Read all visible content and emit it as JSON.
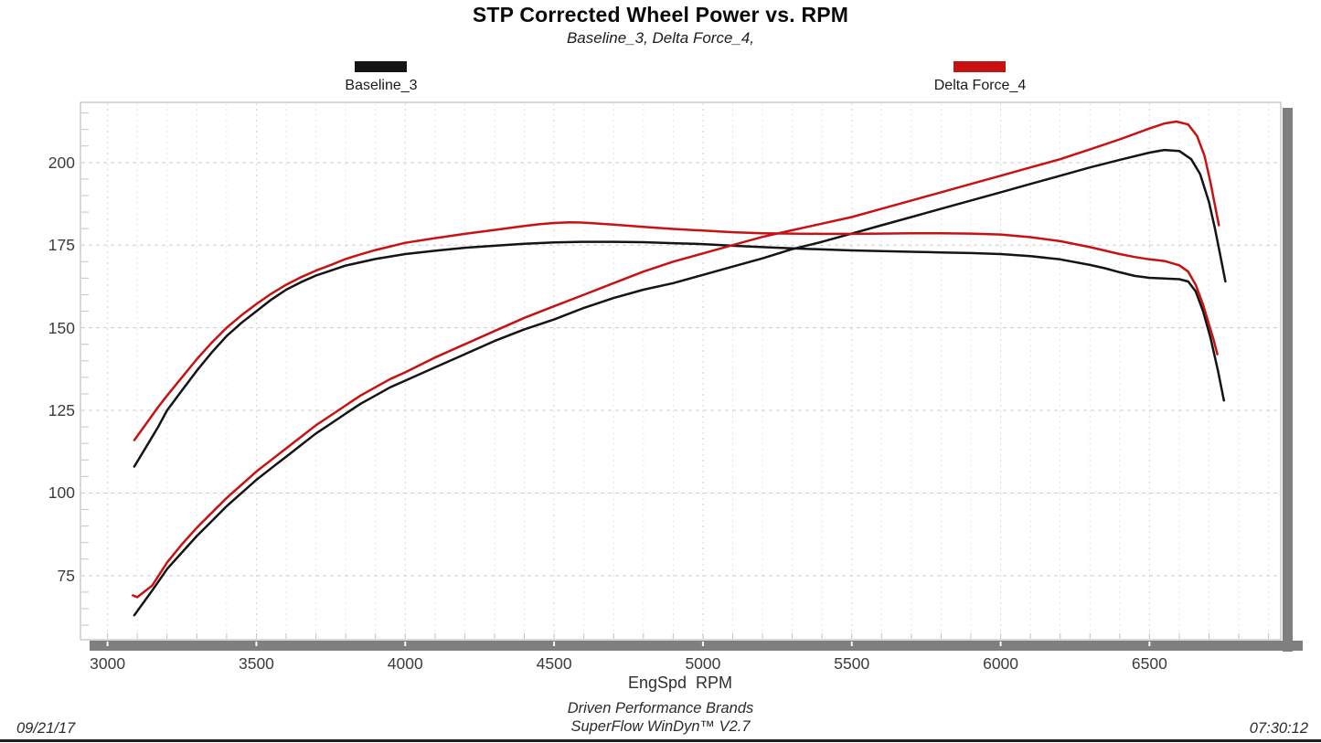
{
  "page": {
    "title": "STP Corrected Wheel Power vs. RPM",
    "subtitle": "Baseline_3,  Delta Force_4,",
    "date": "09/21/17",
    "time": "07:30:12",
    "footer_line1": "Driven Performance Brands",
    "footer_line2": "SuperFlow WinDyn™ V2.7"
  },
  "legend": [
    {
      "label": "Baseline_3",
      "color": "#141414"
    },
    {
      "label": "Delta Force_4",
      "color": "#c81212"
    }
  ],
  "chart_data": {
    "type": "line",
    "title": "STP Corrected Wheel Power vs. RPM",
    "subtitle": "Baseline_3, Delta Force_4,",
    "xlabel": "EngSpd  RPM",
    "ylabel": "",
    "xlim": [
      2909,
      6941
    ],
    "ylim": [
      55.6,
      218.2
    ],
    "x_ticks": [
      3000,
      3500,
      4000,
      4500,
      5000,
      5500,
      6000,
      6500
    ],
    "x_minor_step": 100,
    "y_ticks": [
      75,
      100,
      125,
      150,
      175,
      200
    ],
    "y_minor_step": 5,
    "grid": true,
    "legend_position": "top",
    "series": [
      {
        "name": "Baseline_3 (power curve)",
        "color": "#141414",
        "points": [
          [
            3090,
            63
          ],
          [
            3150,
            70.5
          ],
          [
            3200,
            77
          ],
          [
            3250,
            82
          ],
          [
            3300,
            87
          ],
          [
            3350,
            91.5
          ],
          [
            3400,
            96
          ],
          [
            3450,
            100
          ],
          [
            3500,
            104
          ],
          [
            3550,
            107.5
          ],
          [
            3600,
            111
          ],
          [
            3650,
            114.5
          ],
          [
            3700,
            118
          ],
          [
            3750,
            121
          ],
          [
            3800,
            124
          ],
          [
            3850,
            127
          ],
          [
            3900,
            129.5
          ],
          [
            3950,
            132
          ],
          [
            4000,
            134
          ],
          [
            4100,
            138
          ],
          [
            4200,
            142
          ],
          [
            4300,
            146
          ],
          [
            4400,
            149.5
          ],
          [
            4500,
            152.5
          ],
          [
            4600,
            156
          ],
          [
            4700,
            159
          ],
          [
            4800,
            161.5
          ],
          [
            4900,
            163.5
          ],
          [
            5000,
            166
          ],
          [
            5100,
            168.5
          ],
          [
            5200,
            171
          ],
          [
            5300,
            173.8
          ],
          [
            5400,
            176
          ],
          [
            5500,
            178.5
          ],
          [
            5600,
            181
          ],
          [
            5700,
            183.5
          ],
          [
            5800,
            186
          ],
          [
            5900,
            188.5
          ],
          [
            6000,
            191
          ],
          [
            6100,
            193.5
          ],
          [
            6200,
            196
          ],
          [
            6300,
            198.5
          ],
          [
            6400,
            200.8
          ],
          [
            6500,
            203
          ],
          [
            6550,
            203.8
          ],
          [
            6600,
            203.5
          ],
          [
            6640,
            201
          ],
          [
            6670,
            196.5
          ],
          [
            6700,
            188
          ],
          [
            6720,
            180
          ],
          [
            6740,
            171
          ],
          [
            6755,
            164
          ]
        ]
      },
      {
        "name": "Baseline_3 (torque curve)",
        "color": "#141414",
        "points": [
          [
            3090,
            108
          ],
          [
            3130,
            114
          ],
          [
            3170,
            120
          ],
          [
            3200,
            125
          ],
          [
            3250,
            131
          ],
          [
            3300,
            137
          ],
          [
            3350,
            142.5
          ],
          [
            3400,
            147.5
          ],
          [
            3450,
            151.5
          ],
          [
            3500,
            155
          ],
          [
            3550,
            158.5
          ],
          [
            3600,
            161.5
          ],
          [
            3650,
            163.8
          ],
          [
            3700,
            165.8
          ],
          [
            3750,
            167.3
          ],
          [
            3800,
            168.8
          ],
          [
            3850,
            169.8
          ],
          [
            3900,
            170.8
          ],
          [
            4000,
            172.3
          ],
          [
            4100,
            173.3
          ],
          [
            4200,
            174.2
          ],
          [
            4300,
            174.8
          ],
          [
            4400,
            175.4
          ],
          [
            4500,
            175.8
          ],
          [
            4600,
            176
          ],
          [
            4700,
            176
          ],
          [
            4800,
            175.9
          ],
          [
            4900,
            175.6
          ],
          [
            5000,
            175.3
          ],
          [
            5100,
            174.8
          ],
          [
            5200,
            174.4
          ],
          [
            5300,
            174
          ],
          [
            5400,
            173.7
          ],
          [
            5500,
            173.4
          ],
          [
            5600,
            173.2
          ],
          [
            5700,
            173
          ],
          [
            5800,
            172.8
          ],
          [
            5900,
            172.6
          ],
          [
            6000,
            172.3
          ],
          [
            6100,
            171.7
          ],
          [
            6200,
            170.7
          ],
          [
            6300,
            169
          ],
          [
            6350,
            168
          ],
          [
            6400,
            166.8
          ],
          [
            6450,
            165.7
          ],
          [
            6500,
            165.1
          ],
          [
            6550,
            164.9
          ],
          [
            6600,
            164.7
          ],
          [
            6630,
            164
          ],
          [
            6655,
            161
          ],
          [
            6680,
            155
          ],
          [
            6705,
            147
          ],
          [
            6730,
            137
          ],
          [
            6750,
            128
          ]
        ]
      },
      {
        "name": "Delta Force_4 (power curve)",
        "color": "#c81212",
        "points": [
          [
            3085,
            69
          ],
          [
            3100,
            68.5
          ],
          [
            3150,
            72
          ],
          [
            3200,
            79
          ],
          [
            3250,
            84.5
          ],
          [
            3300,
            89.5
          ],
          [
            3350,
            94
          ],
          [
            3400,
            98.5
          ],
          [
            3450,
            102.5
          ],
          [
            3500,
            106.5
          ],
          [
            3550,
            110
          ],
          [
            3600,
            113.5
          ],
          [
            3650,
            117
          ],
          [
            3700,
            120.5
          ],
          [
            3750,
            123.5
          ],
          [
            3800,
            126.5
          ],
          [
            3850,
            129.5
          ],
          [
            3900,
            132
          ],
          [
            3950,
            134.5
          ],
          [
            4000,
            136.5
          ],
          [
            4100,
            141
          ],
          [
            4200,
            145
          ],
          [
            4300,
            149
          ],
          [
            4400,
            153
          ],
          [
            4500,
            156.5
          ],
          [
            4600,
            160
          ],
          [
            4700,
            163.5
          ],
          [
            4800,
            167
          ],
          [
            4900,
            170
          ],
          [
            5000,
            172.5
          ],
          [
            5100,
            175
          ],
          [
            5200,
            177.5
          ],
          [
            5300,
            179.5
          ],
          [
            5400,
            181.5
          ],
          [
            5500,
            183.5
          ],
          [
            5600,
            186
          ],
          [
            5700,
            188.5
          ],
          [
            5800,
            191
          ],
          [
            5900,
            193.5
          ],
          [
            6000,
            196
          ],
          [
            6100,
            198.5
          ],
          [
            6200,
            201
          ],
          [
            6300,
            204
          ],
          [
            6400,
            207
          ],
          [
            6500,
            210.3
          ],
          [
            6550,
            211.8
          ],
          [
            6590,
            212.4
          ],
          [
            6630,
            211.5
          ],
          [
            6660,
            208
          ],
          [
            6685,
            202
          ],
          [
            6705,
            194
          ],
          [
            6720,
            187
          ],
          [
            6733,
            181
          ]
        ]
      },
      {
        "name": "Delta Force_4 (torque curve)",
        "color": "#c81212",
        "points": [
          [
            3090,
            116
          ],
          [
            3130,
            121
          ],
          [
            3170,
            126
          ],
          [
            3200,
            129.5
          ],
          [
            3250,
            135
          ],
          [
            3300,
            140.5
          ],
          [
            3350,
            145.5
          ],
          [
            3400,
            150
          ],
          [
            3450,
            153.8
          ],
          [
            3500,
            157.2
          ],
          [
            3550,
            160.3
          ],
          [
            3600,
            163
          ],
          [
            3650,
            165.3
          ],
          [
            3700,
            167.3
          ],
          [
            3750,
            169
          ],
          [
            3800,
            170.8
          ],
          [
            3850,
            172.2
          ],
          [
            3900,
            173.5
          ],
          [
            4000,
            175.7
          ],
          [
            4100,
            177.1
          ],
          [
            4200,
            178.4
          ],
          [
            4300,
            179.6
          ],
          [
            4400,
            180.8
          ],
          [
            4450,
            181.3
          ],
          [
            4500,
            181.7
          ],
          [
            4550,
            181.9
          ],
          [
            4600,
            181.8
          ],
          [
            4700,
            181.2
          ],
          [
            4800,
            180.5
          ],
          [
            4900,
            179.9
          ],
          [
            5000,
            179.4
          ],
          [
            5100,
            178.9
          ],
          [
            5200,
            178.6
          ],
          [
            5300,
            178.5
          ],
          [
            5400,
            178.4
          ],
          [
            5500,
            178.4
          ],
          [
            5600,
            178.5
          ],
          [
            5700,
            178.6
          ],
          [
            5800,
            178.6
          ],
          [
            5900,
            178.5
          ],
          [
            6000,
            178.2
          ],
          [
            6100,
            177.4
          ],
          [
            6200,
            176.2
          ],
          [
            6300,
            174.4
          ],
          [
            6400,
            172.3
          ],
          [
            6450,
            171.4
          ],
          [
            6500,
            170.7
          ],
          [
            6550,
            170.2
          ],
          [
            6600,
            168.9
          ],
          [
            6630,
            167
          ],
          [
            6655,
            163
          ],
          [
            6680,
            157
          ],
          [
            6700,
            151
          ],
          [
            6715,
            146.5
          ],
          [
            6728,
            142
          ]
        ]
      }
    ]
  }
}
